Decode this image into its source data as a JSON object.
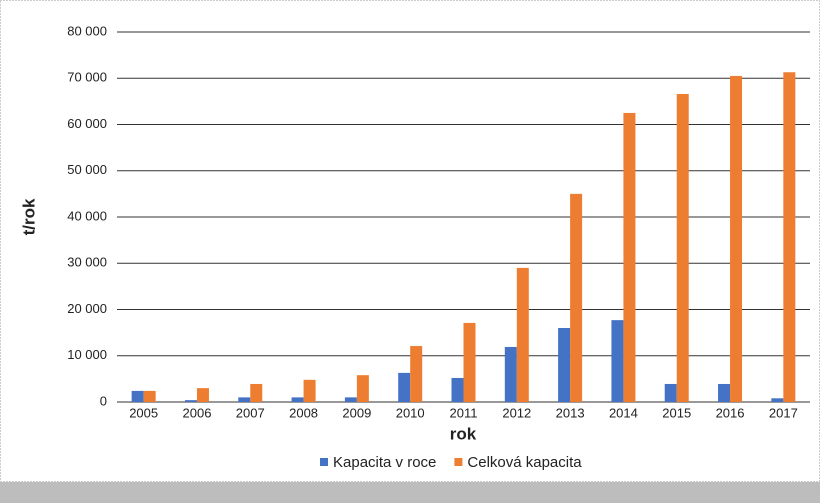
{
  "chart_data": {
    "type": "bar",
    "categories": [
      "2005",
      "2006",
      "2007",
      "2008",
      "2009",
      "2010",
      "2011",
      "2012",
      "2013",
      "2014",
      "2015",
      "2016",
      "2017"
    ],
    "series": [
      {
        "name": "Kapacita v roce",
        "color": "#4472c4",
        "values": [
          2400,
          400,
          1000,
          1000,
          1000,
          6300,
          5200,
          11900,
          16000,
          17700,
          3900,
          3900,
          800
        ]
      },
      {
        "name": "Celková kapacita",
        "color": "#ed7d31",
        "values": [
          2400,
          3000,
          3900,
          4800,
          5800,
          12100,
          17100,
          29000,
          45000,
          62500,
          66600,
          70500,
          71300
        ]
      }
    ],
    "xlabel": "rok",
    "ylabel": "t/rok",
    "ylim": [
      0,
      80000
    ],
    "yticks": [
      0,
      {
        "value": 10000,
        "label": "10 000"
      },
      {
        "value": 20000,
        "label": "20 000"
      },
      {
        "value": 30000,
        "label": "30 000"
      },
      {
        "value": 40000,
        "label": "40 000"
      },
      {
        "value": 50000,
        "label": "50 000"
      },
      {
        "value": 60000,
        "label": "60 000"
      },
      {
        "value": 70000,
        "label": "70 000"
      },
      {
        "value": 80000,
        "label": "80 000"
      }
    ],
    "grid": true,
    "legend": "bottom"
  }
}
